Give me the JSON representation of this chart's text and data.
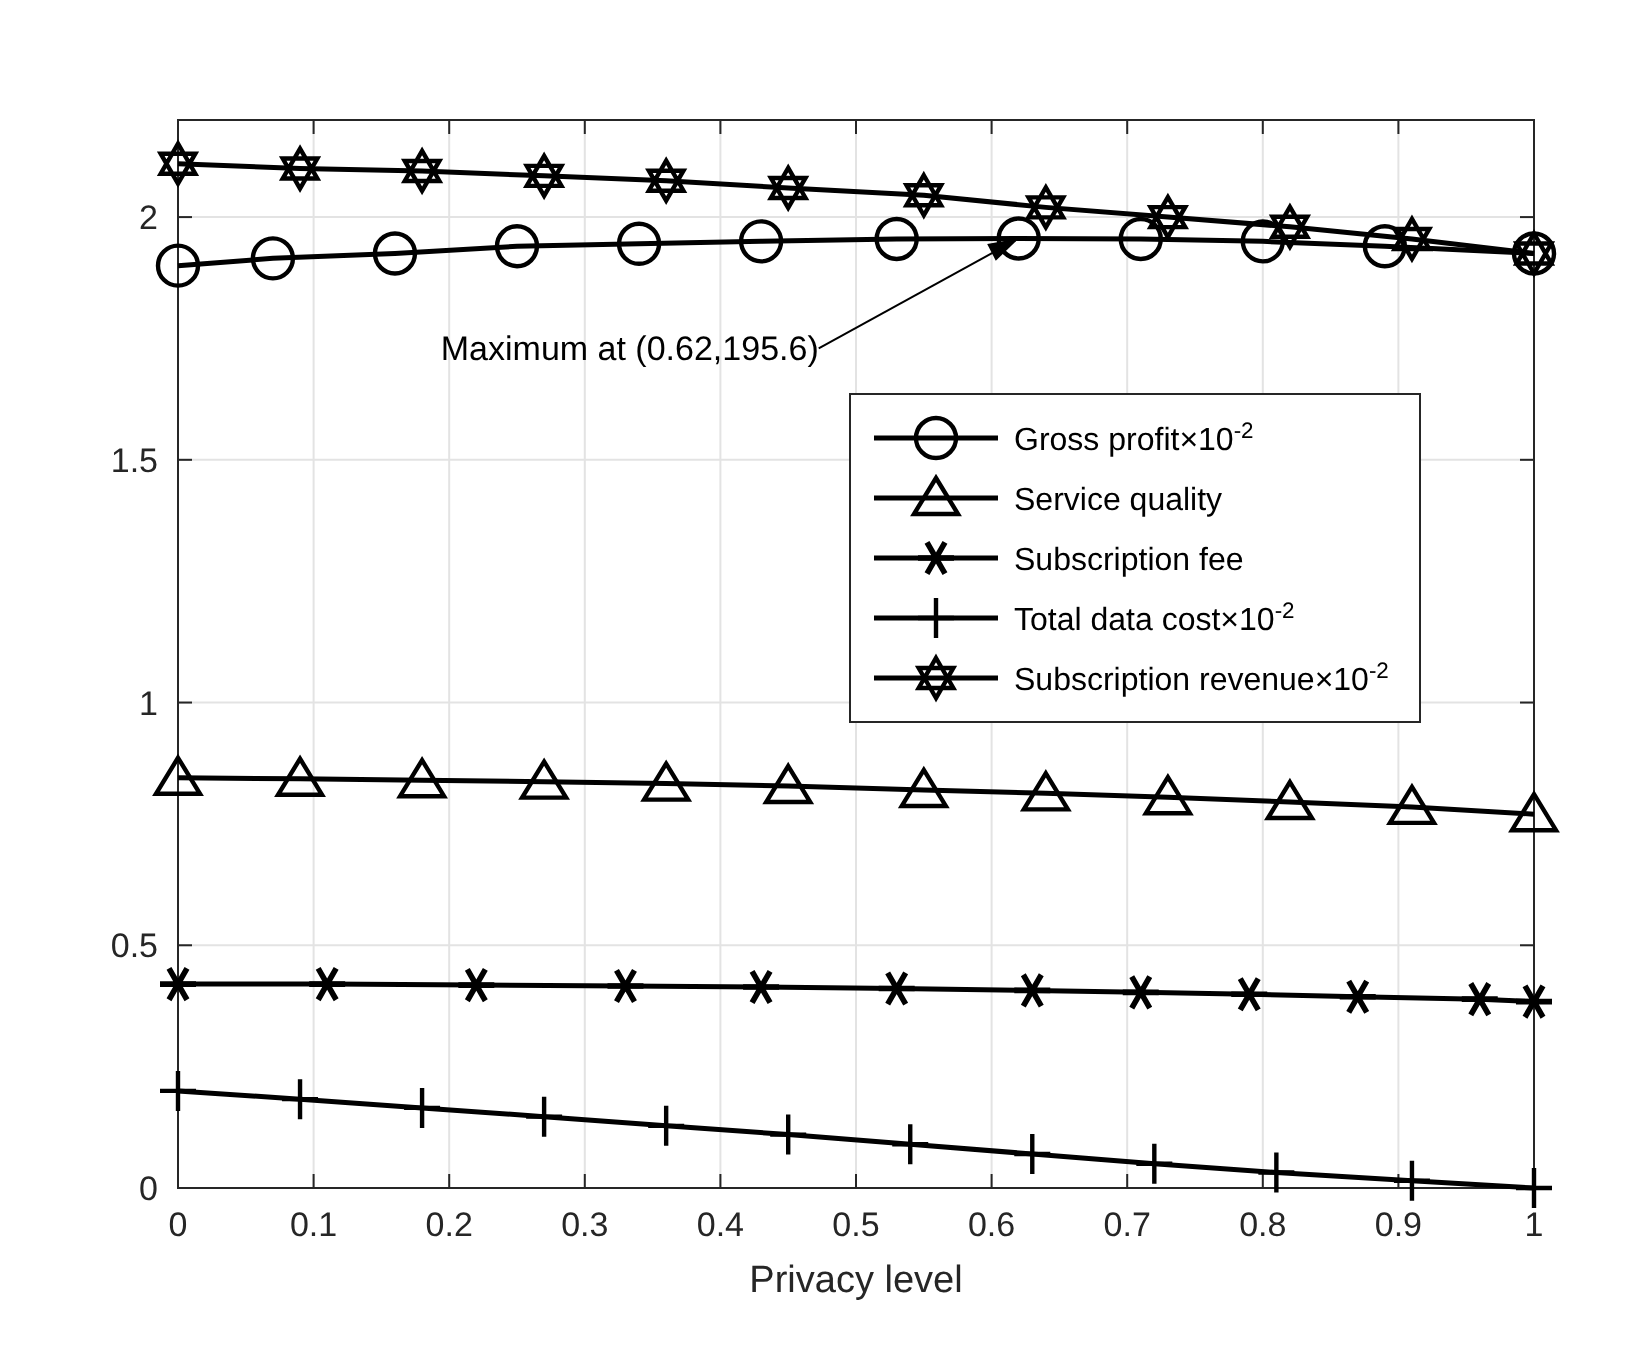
{
  "chart_data": {
    "type": "line",
    "xlabel": "Privacy level",
    "xlim": [
      0,
      1
    ],
    "ylim": [
      0,
      2.2
    ],
    "xticks": [
      0,
      0.1,
      0.2,
      0.3,
      0.4,
      0.5,
      0.6,
      0.7,
      0.8,
      0.9,
      1
    ],
    "yticks": [
      0,
      0.5,
      1,
      1.5,
      2
    ],
    "grid": true,
    "legend": "right",
    "line_style": "solid",
    "annotations": [
      {
        "text": "Maximum at (0.62,195.6)",
        "x": 0.62,
        "y": 1.956
      }
    ],
    "series": [
      {
        "name": "Gross profit×10$^{-2}$",
        "color": "#000000",
        "marker": "circle",
        "x": [
          0,
          0.07,
          0.16,
          0.25,
          0.34,
          0.43,
          0.53,
          0.62,
          0.71,
          0.8,
          0.89,
          1
        ],
        "values": [
          1.9,
          1.915,
          1.925,
          1.94,
          1.945,
          1.95,
          1.955,
          1.956,
          1.955,
          1.95,
          1.94,
          1.925
        ]
      },
      {
        "name": "Service quality",
        "color": "#000000",
        "marker": "triangle",
        "x": [
          0,
          0.09,
          0.18,
          0.27,
          0.36,
          0.45,
          0.55,
          0.64,
          0.73,
          0.82,
          0.91,
          1
        ],
        "values": [
          0.845,
          0.843,
          0.84,
          0.837,
          0.833,
          0.828,
          0.82,
          0.813,
          0.805,
          0.795,
          0.785,
          0.77
        ]
      },
      {
        "name": "Subscription fee",
        "color": "#000000",
        "marker": "cross",
        "x": [
          0,
          0.11,
          0.22,
          0.33,
          0.43,
          0.53,
          0.63,
          0.71,
          0.79,
          0.87,
          0.96,
          1
        ],
        "values": [
          0.42,
          0.42,
          0.418,
          0.416,
          0.414,
          0.411,
          0.407,
          0.403,
          0.399,
          0.394,
          0.389,
          0.384
        ]
      },
      {
        "name": "Total data cost×10$^{-2}$",
        "color": "#000000",
        "marker": "plus",
        "x": [
          0,
          0.09,
          0.18,
          0.27,
          0.36,
          0.45,
          0.54,
          0.63,
          0.72,
          0.81,
          0.91,
          1
        ],
        "values": [
          0.2,
          0.183,
          0.165,
          0.147,
          0.128,
          0.11,
          0.09,
          0.07,
          0.05,
          0.032,
          0.015,
          0
        ]
      },
      {
        "name": "Subscription revenue×10$^{-2}$",
        "color": "#000000",
        "marker": "star",
        "x": [
          0,
          0.09,
          0.18,
          0.27,
          0.36,
          0.45,
          0.55,
          0.64,
          0.73,
          0.82,
          0.91,
          1
        ],
        "values": [
          2.11,
          2.1,
          2.095,
          2.085,
          2.075,
          2.06,
          2.045,
          2.02,
          2.0,
          1.98,
          1.955,
          1.925
        ]
      }
    ]
  }
}
